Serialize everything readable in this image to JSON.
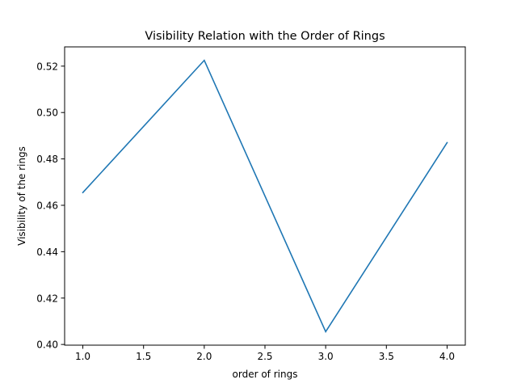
{
  "chart_data": {
    "type": "line",
    "title": "Visibility Relation with the Order of Rings",
    "xlabel": "order of rings",
    "ylabel": "Visibility of the rings",
    "x": [
      1.0,
      2.0,
      3.0,
      4.0
    ],
    "series": [
      {
        "values": [
          0.4655,
          0.5225,
          0.4055,
          0.487
        ],
        "color": "#1f77b4"
      }
    ],
    "xlim": [
      0.85,
      4.15
    ],
    "ylim": [
      0.3997,
      0.5283
    ],
    "xticks": [
      1.0,
      1.5,
      2.0,
      2.5,
      3.0,
      3.5,
      4.0
    ],
    "xtick_labels": [
      "1.0",
      "1.5",
      "2.0",
      "2.5",
      "3.0",
      "3.5",
      "4.0"
    ],
    "yticks": [
      0.4,
      0.42,
      0.44,
      0.46,
      0.48,
      0.5,
      0.52
    ],
    "ytick_labels": [
      "0.40",
      "0.42",
      "0.44",
      "0.46",
      "0.48",
      "0.50",
      "0.52"
    ],
    "grid": false,
    "legend": "none"
  }
}
